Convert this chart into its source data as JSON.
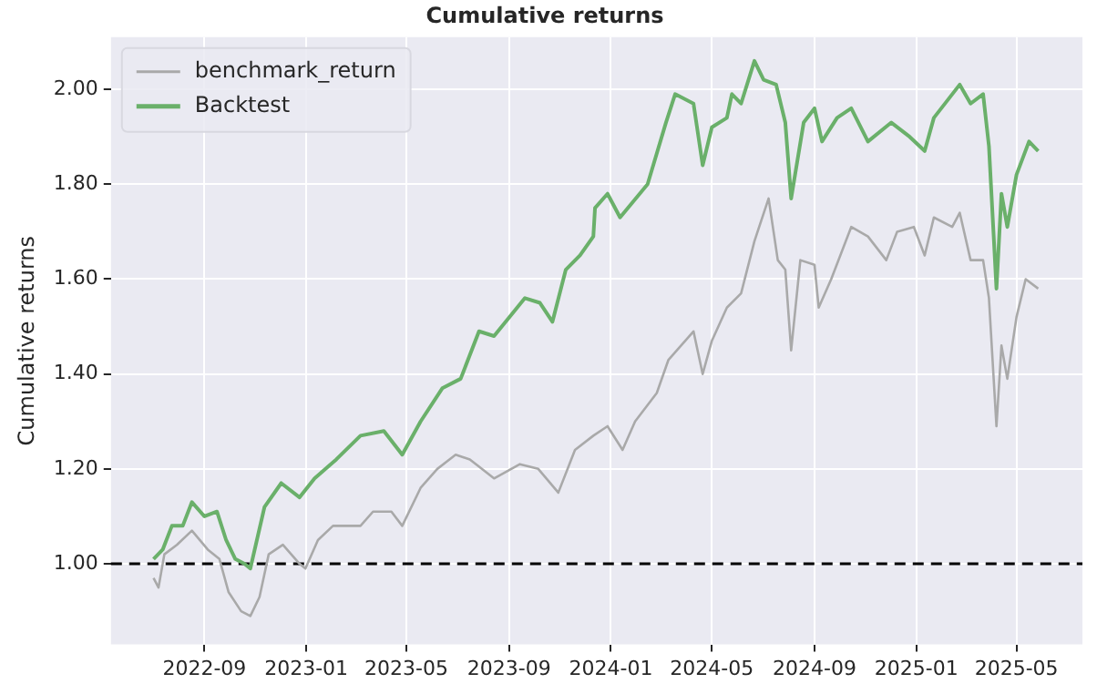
{
  "chart_data": {
    "type": "line",
    "title": "Cumulative returns",
    "ylabel": "Cumulative returns",
    "xlim": [
      "2022-05-12",
      "2025-07-19"
    ],
    "xticks": [
      "2022-09",
      "2023-01",
      "2023-05",
      "2023-09",
      "2024-01",
      "2024-05",
      "2024-09",
      "2025-01",
      "2025-05"
    ],
    "ylim": [
      0.83,
      2.11
    ],
    "yticks": [
      {
        "value": 1,
        "label": "1.00"
      },
      {
        "value": 1.2,
        "label": "1.20"
      },
      {
        "value": 1.4,
        "label": "1.40"
      },
      {
        "value": 1.6,
        "label": "1.60"
      },
      {
        "value": 1.8,
        "label": "1.80"
      },
      {
        "value": 2,
        "label": "2.00"
      }
    ],
    "grid": true,
    "legend": "top left",
    "line_style": "solid",
    "marker": "none",
    "ref_lines": [
      {
        "axis": "y",
        "value": 1,
        "color": "#000000",
        "line_style": "dashed"
      }
    ],
    "series": [
      {
        "name": "benchmark_return",
        "color": "#a9a9a9",
        "x": [
          "2022-07-02",
          "2022-07-08",
          "2022-07-15",
          "2022-07-30",
          "2022-08-17",
          "2022-09-05",
          "2022-09-19",
          "2022-09-30",
          "2022-10-15",
          "2022-10-26",
          "2022-11-06",
          "2022-11-17",
          "2022-12-04",
          "2022-12-24",
          "2022-12-31",
          "2023-01-15",
          "2023-02-02",
          "2023-03-07",
          "2023-03-22",
          "2023-04-13",
          "2023-04-26",
          "2023-05-18",
          "2023-06-07",
          "2023-06-29",
          "2023-07-16",
          "2023-08-14",
          "2023-09-14",
          "2023-10-06",
          "2023-10-30",
          "2023-11-19",
          "2023-12-11",
          "2023-12-28",
          "2024-01-15",
          "2024-01-30",
          "2024-02-25",
          "2024-03-10",
          "2024-04-09",
          "2024-04-20",
          "2024-05-01",
          "2024-05-19",
          "2024-06-05",
          "2024-06-21",
          "2024-07-08",
          "2024-07-19",
          "2024-07-28",
          "2024-08-04",
          "2024-08-15",
          "2024-09-01",
          "2024-09-06",
          "2024-09-21",
          "2024-10-15",
          "2024-11-04",
          "2024-11-26",
          "2024-12-09",
          "2024-12-29",
          "2025-01-11",
          "2025-01-22",
          "2025-02-13",
          "2025-02-22",
          "2025-03-07",
          "2025-03-22",
          "2025-03-29",
          "2025-04-07",
          "2025-04-13",
          "2025-04-20",
          "2025-05-01",
          "2025-05-12",
          "2025-05-27"
        ],
        "values": [
          0.97,
          0.95,
          1.02,
          1.04,
          1.07,
          1.03,
          1.01,
          0.94,
          0.9,
          0.89,
          0.93,
          1.02,
          1.04,
          1.0,
          0.99,
          1.05,
          1.08,
          1.08,
          1.11,
          1.11,
          1.08,
          1.16,
          1.2,
          1.23,
          1.22,
          1.18,
          1.21,
          1.2,
          1.15,
          1.24,
          1.27,
          1.29,
          1.24,
          1.3,
          1.36,
          1.43,
          1.49,
          1.4,
          1.47,
          1.54,
          1.57,
          1.68,
          1.77,
          1.64,
          1.62,
          1.45,
          1.64,
          1.63,
          1.54,
          1.6,
          1.71,
          1.69,
          1.64,
          1.7,
          1.71,
          1.65,
          1.73,
          1.71,
          1.74,
          1.64,
          1.64,
          1.56,
          1.29,
          1.46,
          1.39,
          1.52,
          1.6,
          1.58
        ]
      },
      {
        "name": "Backtest",
        "color": "#6ab06a",
        "x": [
          "2022-07-02",
          "2022-07-13",
          "2022-07-24",
          "2022-08-06",
          "2022-08-17",
          "2022-09-01",
          "2022-09-16",
          "2022-09-27",
          "2022-10-08",
          "2022-10-19",
          "2022-10-26",
          "2022-11-12",
          "2022-12-02",
          "2022-12-24",
          "2023-01-11",
          "2023-02-06",
          "2023-03-07",
          "2023-04-04",
          "2023-04-26",
          "2023-05-18",
          "2023-06-13",
          "2023-07-05",
          "2023-07-27",
          "2023-08-14",
          "2023-09-20",
          "2023-10-08",
          "2023-10-23",
          "2023-11-08",
          "2023-11-25",
          "2023-12-11",
          "2023-12-13",
          "2023-12-28",
          "2024-01-12",
          "2024-02-14",
          "2024-03-07",
          "2024-03-18",
          "2024-04-09",
          "2024-04-20",
          "2024-05-01",
          "2024-05-19",
          "2024-05-25",
          "2024-06-05",
          "2024-06-21",
          "2024-07-02",
          "2024-07-17",
          "2024-07-28",
          "2024-08-04",
          "2024-08-19",
          "2024-09-01",
          "2024-09-10",
          "2024-09-28",
          "2024-10-15",
          "2024-11-04",
          "2024-12-02",
          "2024-12-24",
          "2025-01-11",
          "2025-01-22",
          "2025-02-22",
          "2025-03-07",
          "2025-03-22",
          "2025-03-29",
          "2025-04-07",
          "2025-04-13",
          "2025-04-20",
          "2025-05-01",
          "2025-05-16",
          "2025-05-27"
        ],
        "values": [
          1.01,
          1.03,
          1.08,
          1.08,
          1.13,
          1.1,
          1.11,
          1.05,
          1.01,
          1.0,
          0.99,
          1.12,
          1.17,
          1.14,
          1.18,
          1.22,
          1.27,
          1.28,
          1.23,
          1.3,
          1.37,
          1.39,
          1.49,
          1.48,
          1.56,
          1.55,
          1.51,
          1.62,
          1.65,
          1.69,
          1.75,
          1.78,
          1.73,
          1.8,
          1.93,
          1.99,
          1.97,
          1.84,
          1.92,
          1.94,
          1.99,
          1.97,
          2.06,
          2.02,
          2.01,
          1.93,
          1.77,
          1.93,
          1.96,
          1.89,
          1.94,
          1.96,
          1.89,
          1.93,
          1.9,
          1.87,
          1.94,
          2.01,
          1.97,
          1.99,
          1.88,
          1.58,
          1.78,
          1.71,
          1.82,
          1.89,
          1.87
        ]
      }
    ]
  }
}
